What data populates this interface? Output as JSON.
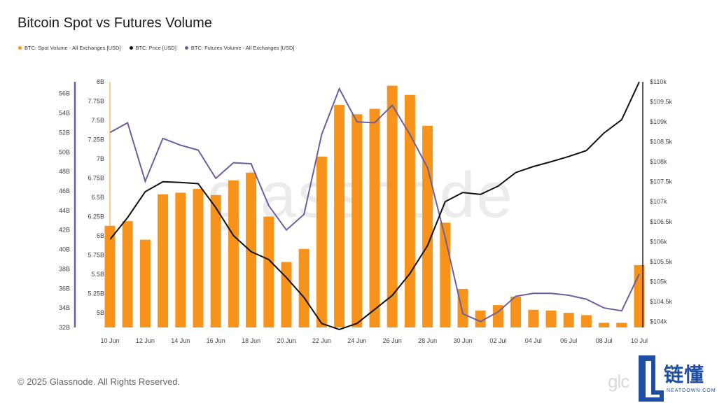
{
  "title": "Bitcoin Spot vs Futures Volume",
  "footer": "© 2025 Glassnode. All Rights Reserved.",
  "watermark": "glassnode",
  "small_watermark": "glc",
  "brand": {
    "text": "链懂",
    "sub": "NEATDOWN.COM",
    "color": "#1e4fa3"
  },
  "colors": {
    "spot": "#f7931a",
    "price": "#111111",
    "futures": "#6b5fa0"
  },
  "legend": [
    {
      "label": "BTC: Spot Volume - All Exchanges [USD]",
      "color": "#f7931a"
    },
    {
      "label": "BTC: Price [USD]",
      "color": "#111111"
    },
    {
      "label": "BTC: Futures Volume - All Exchanges [USD]",
      "color": "#6b5fa0"
    }
  ],
  "chart_data": {
    "type": "bar+line",
    "x": [
      "10 Jun",
      "11 Jun",
      "12 Jun",
      "13 Jun",
      "14 Jun",
      "15 Jun",
      "16 Jun",
      "17 Jun",
      "18 Jun",
      "19 Jun",
      "20 Jun",
      "21 Jun",
      "22 Jun",
      "23 Jun",
      "24 Jun",
      "25 Jun",
      "26 Jun",
      "27 Jun",
      "28 Jun",
      "29 Jun",
      "30 Jun",
      "01 Jul",
      "02 Jul",
      "03 Jul",
      "04 Jul",
      "05 Jul",
      "06 Jul",
      "07 Jul",
      "08 Jul",
      "09 Jul",
      "10 Jul"
    ],
    "xticks": [
      "10 Jun",
      "12 Jun",
      "14 Jun",
      "16 Jun",
      "18 Jun",
      "20 Jun",
      "22 Jun",
      "24 Jun",
      "26 Jun",
      "28 Jun",
      "30 Jun",
      "02 Jul",
      "04 Jul",
      "06 Jul",
      "08 Jul",
      "10 Jul"
    ],
    "series": [
      {
        "name": "BTC: Spot Volume - All Exchanges [USD]",
        "type": "bar",
        "axis": "left-inner",
        "values": [
          6.13,
          6.19,
          5.95,
          6.54,
          6.56,
          6.61,
          6.53,
          6.72,
          6.82,
          6.25,
          5.66,
          5.83,
          7.03,
          7.7,
          7.58,
          7.65,
          7.95,
          7.83,
          7.43,
          6.17,
          5.31,
          5.03,
          5.1,
          5.21,
          5.04,
          5.03,
          5.0,
          4.97,
          4.87,
          4.87,
          5.62
        ]
      },
      {
        "name": "BTC: Price [USD]",
        "type": "line",
        "axis": "right",
        "values": [
          106050,
          106600,
          107250,
          107500,
          107480,
          107450,
          106850,
          106150,
          105750,
          105550,
          105100,
          104600,
          103950,
          103800,
          103950,
          104300,
          104650,
          105200,
          105900,
          107000,
          107230,
          107180,
          107390,
          107730,
          107880,
          108000,
          108130,
          108280,
          108720,
          109050,
          110000
        ]
      },
      {
        "name": "BTC: Futures Volume - All Exchanges [USD]",
        "type": "line",
        "axis": "left-outer",
        "values": [
          52.0,
          53.0,
          47.0,
          51.4,
          50.7,
          50.2,
          47.3,
          48.9,
          48.8,
          44.5,
          42.0,
          43.6,
          51.8,
          56.5,
          53.1,
          53.0,
          54.8,
          51.8,
          48.4,
          41.2,
          33.4,
          32.6,
          33.6,
          35.2,
          35.5,
          35.5,
          35.3,
          34.9,
          34.0,
          33.7,
          37.5
        ]
      }
    ],
    "y_left_outer": {
      "ticks": [
        "56B",
        "54B",
        "52B",
        "50B",
        "48B",
        "46B",
        "44B",
        "42B",
        "40B",
        "38B",
        "36B",
        "34B",
        "32B"
      ],
      "range": [
        32,
        57.2
      ]
    },
    "y_left_inner": {
      "ticks": [
        "8B",
        "7.75B",
        "7.5B",
        "7.25B",
        "7B",
        "6.75B",
        "6.5B",
        "6.25B",
        "6B",
        "5.75B",
        "5.5B",
        "5.25B",
        "5B"
      ],
      "range": [
        4.81,
        8.0
      ]
    },
    "y_right": {
      "ticks": [
        "$110k",
        "$109.5k",
        "$109k",
        "$108.5k",
        "$108k",
        "$107.5k",
        "$107k",
        "$106.5k",
        "$106k",
        "$105.5k",
        "$105k",
        "$104.5k",
        "$104k"
      ],
      "range": [
        103850,
        110000
      ]
    },
    "grid": false
  }
}
